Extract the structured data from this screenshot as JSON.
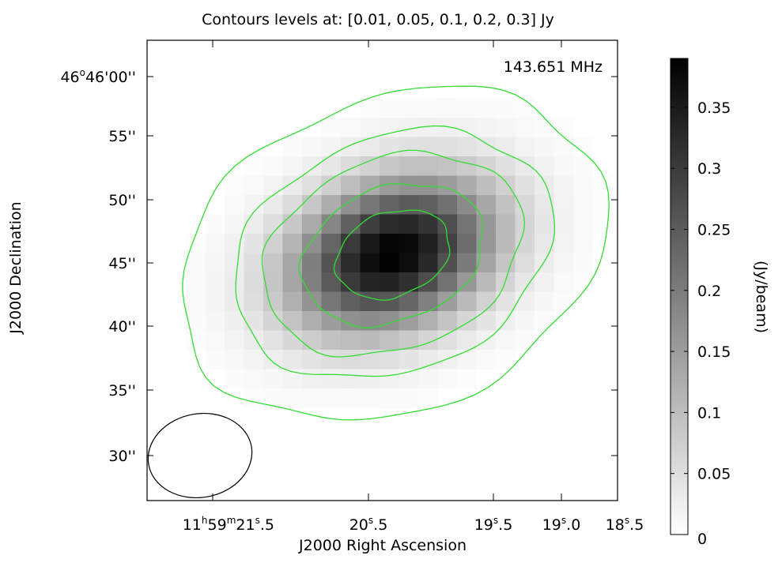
{
  "chart_data": {
    "type": "heatmap",
    "title": "Contours levels at: [0.01, 0.05, 0.1, 0.2, 0.3] Jy",
    "annotation": "143.651 MHz",
    "xlabel": "J2000 Right Ascension",
    "ylabel": "J2000 Declination",
    "x_ticks": [
      {
        "h": "11",
        "m": "59",
        "s": "21",
        "f": ".5"
      },
      {
        "s": "20",
        "f": ".5"
      },
      {
        "s": "19",
        "f": ".5"
      },
      {
        "s": "19",
        "f": ".0"
      },
      {
        "s": "18",
        "f": ".5"
      }
    ],
    "y_ticks": [
      {
        "deg": "46",
        "amin": "46",
        "asec": "00''"
      },
      {
        "asec": "55''"
      },
      {
        "asec": "50''"
      },
      {
        "asec": "45''"
      },
      {
        "asec": "40''"
      },
      {
        "asec": "35''"
      },
      {
        "asec": "30''"
      }
    ],
    "colorbar": {
      "label": "(Jy/beam)",
      "ticks": [
        "0",
        "0.05",
        "0.1",
        "0.15",
        "0.2",
        "0.25",
        "0.3",
        "0.35"
      ],
      "tick_values": [
        0,
        0.05,
        0.1,
        0.15,
        0.2,
        0.25,
        0.3,
        0.35
      ],
      "range": [
        0,
        0.39
      ],
      "colormap": "gray_r"
    },
    "contour_levels": [
      0.01,
      0.05,
      0.1,
      0.2,
      0.3
    ],
    "contour_color": "#33dd33",
    "beam_color": "#000000",
    "source": {
      "peak": 0.39,
      "center_ra_offset_s": -0.3,
      "center_dec_asec": 45.8
    },
    "image_extent": {
      "ra_s": [
        21.6,
        18.4
      ],
      "dec_asec": [
        26.5,
        62.0
      ]
    }
  }
}
